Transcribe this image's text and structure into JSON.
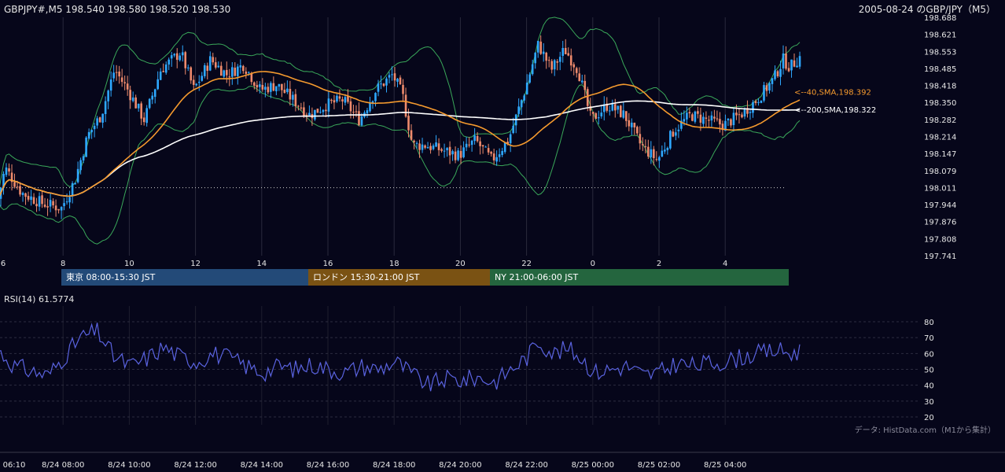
{
  "header": {
    "symbol_line": "GBPJPY#,M5 198.540 198.580 198.520 198.530",
    "chart_title": "2005-08-24 のGBP/JPY（M5）"
  },
  "sessions": [
    {
      "label": "東京 08:00-15:30 JST",
      "color": "#234a78"
    },
    {
      "label": "ロンドン 15:30-21:00 JST",
      "color": "#7a5213"
    },
    {
      "label": "NY 21:00-06:00 JST",
      "color": "#24653e"
    }
  ],
  "rsi": {
    "label": "RSI(14) 61.5774",
    "ticks": [
      "80",
      "70",
      "60",
      "50",
      "40",
      "30",
      "20"
    ],
    "color": "#5a63e0"
  },
  "attribution": "データ: HistData.com（M1から集計）",
  "colors": {
    "up": "#2ea8ff",
    "down": "#ee8a6c",
    "sma40": "#f59a2e",
    "sma200": "#ffffff",
    "bollinger": "#3aa85a"
  },
  "chart_data": [
    {
      "type": "candlestick",
      "title": "2005-08-24 のGBP/JPY（M5）",
      "price_ticks": [
        "198.688",
        "198.621",
        "198.553",
        "198.485",
        "198.418",
        "198.350",
        "198.282",
        "198.214",
        "198.147",
        "198.079",
        "198.011",
        "197.944",
        "197.876",
        "197.808",
        "197.741"
      ],
      "ylim": [
        197.741,
        198.688
      ],
      "hour_ticks": [
        "6",
        "8",
        "10",
        "12",
        "14",
        "16",
        "18",
        "20",
        "22",
        "0",
        "2",
        "4"
      ],
      "reference_line": 198.011,
      "annotations": [
        {
          "label": "<--40,SMA,198.392",
          "value": 198.392,
          "series": "sma40"
        },
        {
          "label": "<--200,SMA,198.322",
          "value": 198.322,
          "series": "sma200"
        }
      ],
      "anchors": [
        {
          "h": 0.0,
          "v": 197.92
        },
        {
          "h": 0.3,
          "v": 198.09
        },
        {
          "h": 0.8,
          "v": 197.99
        },
        {
          "h": 1.4,
          "v": 197.95
        },
        {
          "h": 2.0,
          "v": 197.93
        },
        {
          "h": 2.4,
          "v": 198.04
        },
        {
          "h": 2.8,
          "v": 198.22
        },
        {
          "h": 3.2,
          "v": 198.3
        },
        {
          "h": 3.6,
          "v": 198.48
        },
        {
          "h": 4.0,
          "v": 198.4
        },
        {
          "h": 4.5,
          "v": 198.28
        },
        {
          "h": 5.0,
          "v": 198.48
        },
        {
          "h": 5.6,
          "v": 198.55
        },
        {
          "h": 6.0,
          "v": 198.4
        },
        {
          "h": 6.5,
          "v": 198.52
        },
        {
          "h": 7.0,
          "v": 198.46
        },
        {
          "h": 7.5,
          "v": 198.5
        },
        {
          "h": 8.0,
          "v": 198.4
        },
        {
          "h": 8.5,
          "v": 198.42
        },
        {
          "h": 9.0,
          "v": 198.36
        },
        {
          "h": 9.5,
          "v": 198.3
        },
        {
          "h": 10.0,
          "v": 198.34
        },
        {
          "h": 10.5,
          "v": 198.36
        },
        {
          "h": 11.0,
          "v": 198.28
        },
        {
          "h": 11.5,
          "v": 198.4
        },
        {
          "h": 12.0,
          "v": 198.46
        },
        {
          "h": 12.3,
          "v": 198.38
        },
        {
          "h": 12.6,
          "v": 198.18
        },
        {
          "h": 13.0,
          "v": 198.18
        },
        {
          "h": 13.5,
          "v": 198.16
        },
        {
          "h": 14.0,
          "v": 198.14
        },
        {
          "h": 14.5,
          "v": 198.2
        },
        {
          "h": 15.0,
          "v": 198.12
        },
        {
          "h": 15.5,
          "v": 198.2
        },
        {
          "h": 16.0,
          "v": 198.4
        },
        {
          "h": 16.4,
          "v": 198.58
        },
        {
          "h": 16.8,
          "v": 198.48
        },
        {
          "h": 17.2,
          "v": 198.56
        },
        {
          "h": 17.6,
          "v": 198.48
        },
        {
          "h": 18.0,
          "v": 198.28
        },
        {
          "h": 18.5,
          "v": 198.34
        },
        {
          "h": 19.0,
          "v": 198.3
        },
        {
          "h": 19.5,
          "v": 198.18
        },
        {
          "h": 20.0,
          "v": 198.12
        },
        {
          "h": 20.5,
          "v": 198.24
        },
        {
          "h": 21.0,
          "v": 198.3
        },
        {
          "h": 21.5,
          "v": 198.28
        },
        {
          "h": 22.0,
          "v": 198.26
        },
        {
          "h": 22.5,
          "v": 198.3
        },
        {
          "h": 23.0,
          "v": 198.36
        },
        {
          "h": 23.5,
          "v": 198.44
        },
        {
          "h": 23.8,
          "v": 198.52
        },
        {
          "h": 24.0,
          "v": 198.49
        },
        {
          "h": 24.3,
          "v": 198.53
        }
      ]
    },
    {
      "type": "line",
      "title": "RSI(14) 61.5774",
      "ylim": [
        20,
        80
      ],
      "anchors": [
        {
          "h": 0.0,
          "v": 62
        },
        {
          "h": 0.5,
          "v": 52
        },
        {
          "h": 1.0,
          "v": 49
        },
        {
          "h": 1.5,
          "v": 46
        },
        {
          "h": 2.0,
          "v": 58
        },
        {
          "h": 2.5,
          "v": 70
        },
        {
          "h": 3.0,
          "v": 74
        },
        {
          "h": 3.5,
          "v": 58
        },
        {
          "h": 4.0,
          "v": 52
        },
        {
          "h": 4.5,
          "v": 57
        },
        {
          "h": 5.0,
          "v": 64
        },
        {
          "h": 5.5,
          "v": 58
        },
        {
          "h": 6.0,
          "v": 55
        },
        {
          "h": 6.5,
          "v": 60
        },
        {
          "h": 7.0,
          "v": 57
        },
        {
          "h": 7.5,
          "v": 52
        },
        {
          "h": 8.0,
          "v": 48
        },
        {
          "h": 8.5,
          "v": 52
        },
        {
          "h": 9.0,
          "v": 50
        },
        {
          "h": 9.5,
          "v": 53
        },
        {
          "h": 10.0,
          "v": 50
        },
        {
          "h": 10.5,
          "v": 48
        },
        {
          "h": 11.0,
          "v": 52
        },
        {
          "h": 11.5,
          "v": 50
        },
        {
          "h": 12.0,
          "v": 55
        },
        {
          "h": 12.5,
          "v": 47
        },
        {
          "h": 13.0,
          "v": 40
        },
        {
          "h": 13.5,
          "v": 44
        },
        {
          "h": 14.0,
          "v": 43
        },
        {
          "h": 14.5,
          "v": 45
        },
        {
          "h": 15.0,
          "v": 42
        },
        {
          "h": 15.5,
          "v": 50
        },
        {
          "h": 16.0,
          "v": 58
        },
        {
          "h": 16.3,
          "v": 68
        },
        {
          "h": 16.8,
          "v": 60
        },
        {
          "h": 17.2,
          "v": 63
        },
        {
          "h": 17.6,
          "v": 58
        },
        {
          "h": 18.0,
          "v": 48
        },
        {
          "h": 18.5,
          "v": 50
        },
        {
          "h": 19.0,
          "v": 52
        },
        {
          "h": 19.5,
          "v": 46
        },
        {
          "h": 20.0,
          "v": 48
        },
        {
          "h": 20.5,
          "v": 54
        },
        {
          "h": 21.0,
          "v": 52
        },
        {
          "h": 21.5,
          "v": 54
        },
        {
          "h": 22.0,
          "v": 55
        },
        {
          "h": 22.5,
          "v": 58
        },
        {
          "h": 23.0,
          "v": 60
        },
        {
          "h": 23.5,
          "v": 62
        },
        {
          "h": 24.0,
          "v": 60
        },
        {
          "h": 24.3,
          "v": 62
        }
      ]
    }
  ],
  "time_axis": {
    "ticks": [
      "06:10",
      "8/24 08:00",
      "8/24 10:00",
      "8/24 12:00",
      "8/24 14:00",
      "8/24 16:00",
      "8/24 18:00",
      "8/24 20:00",
      "8/24 22:00",
      "8/25 00:00",
      "8/25 02:00",
      "8/25 04:00"
    ]
  }
}
